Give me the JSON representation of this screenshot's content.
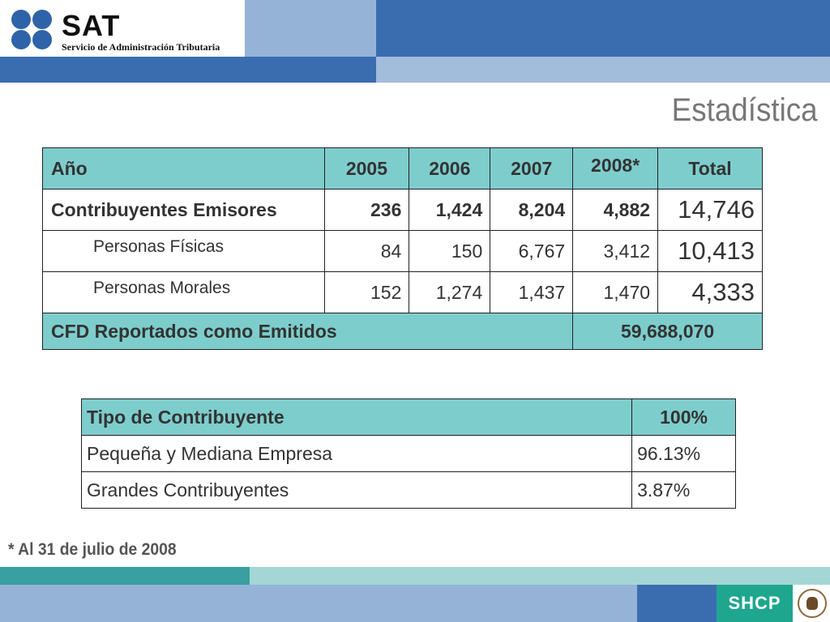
{
  "header": {
    "logo_text": "SAT",
    "logo_subtitle": "Servicio de Administración Tributaria",
    "colors": {
      "dark_blue": "#3a6db0",
      "light_blue": "#95b3d7"
    }
  },
  "page_title": "Estadística",
  "table1": {
    "header": {
      "label": "Año",
      "y2005": "2005",
      "y2006": "2006",
      "y2007": "2007",
      "y2008": "2008*",
      "total": "Total"
    },
    "rows": [
      {
        "label": "Contribuyentes Emisores",
        "y2005": "236",
        "y2006": "1,424",
        "y2007": "8,204",
        "y2008": "4,882",
        "total": "14,746"
      },
      {
        "label": "Personas Físicas",
        "y2005": "84",
        "y2006": "150",
        "y2007": "6,767",
        "y2008": "3,412",
        "total": "10,413"
      },
      {
        "label": "Personas Morales",
        "y2005": "152",
        "y2006": "1,274",
        "y2007": "1,437",
        "y2008": "1,470",
        "total": "4,333"
      }
    ],
    "footer": {
      "label": "CFD Reportados como Emitidos",
      "value": "59,688,070"
    }
  },
  "table2": {
    "header": {
      "label": "Tipo de Contribuyente",
      "value": "100%"
    },
    "rows": [
      {
        "label": "Pequeña y Mediana Empresa",
        "value": "96.13%"
      },
      {
        "label": "Grandes Contribuyentes",
        "value": "3.87%"
      }
    ]
  },
  "footnote": "* Al 31 de julio de 2008",
  "footer": {
    "brand": "SHCP",
    "seal_icon": "mexican-coat-of-arms-icon"
  }
}
